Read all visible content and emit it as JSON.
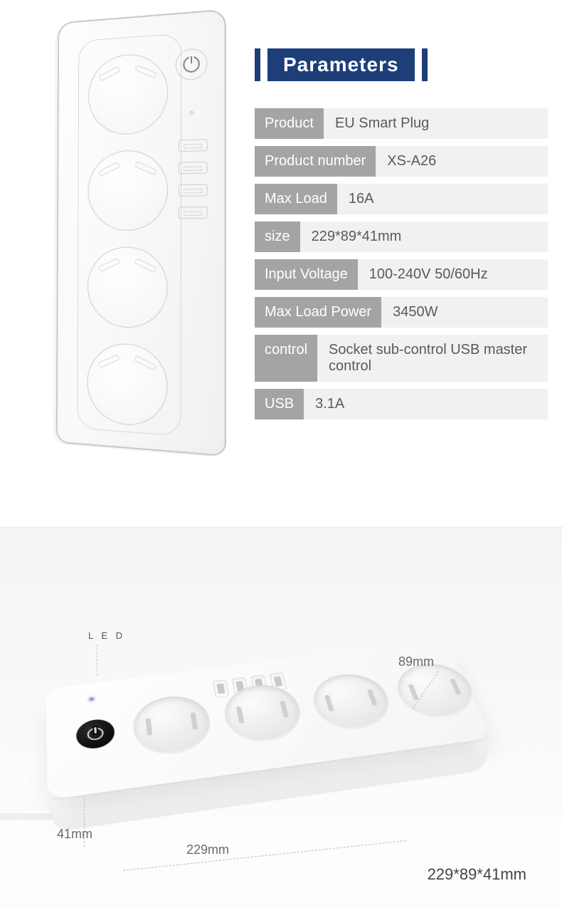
{
  "header": {
    "title": "Parameters",
    "bar_color": "#1d3e78",
    "text_color": "#ffffff"
  },
  "params": {
    "label_bg": "#a3a4a6",
    "value_bg": "#f1f1f1",
    "rows": [
      {
        "label": "Product",
        "value": "EU Smart Plug"
      },
      {
        "label": "Product number",
        "value": "XS-A26"
      },
      {
        "label": "Max Load",
        "value": "16A"
      },
      {
        "label": "size",
        "value": "229*89*41mm"
      },
      {
        "label": "Input Voltage",
        "value": "100-240V 50/60Hz"
      },
      {
        "label": "Max Load Power",
        "value": "3450W"
      },
      {
        "label": "control",
        "value": "Socket sub-control USB master control"
      },
      {
        "label": "USB",
        "value": "3.1A"
      }
    ]
  },
  "dimensions": {
    "led_label": "L E D",
    "height": "41mm",
    "length": "229mm",
    "width": "89mm",
    "full": "229*89*41mm"
  },
  "device": {
    "socket_count": 4,
    "usb_count": 4,
    "body_color": "#ffffff",
    "button_color": "#000000"
  }
}
